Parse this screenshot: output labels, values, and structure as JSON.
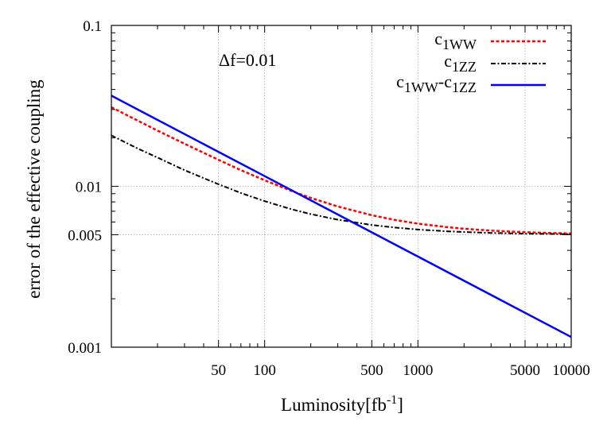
{
  "chart_data": {
    "type": "line",
    "xlabel": "Luminosity[fb",
    "xlabel_sup": "-1",
    "xlabel_end": "]",
    "ylabel": "error of the effective coupling",
    "annotation": "Δf=0.01",
    "x_scale": "log",
    "y_scale": "log",
    "xlim": [
      10,
      10000
    ],
    "ylim": [
      0.001,
      0.1
    ],
    "x_ticks": [
      50,
      100,
      500,
      1000,
      5000,
      10000
    ],
    "x_tick_labels": [
      "50",
      "100",
      "500",
      "1000",
      "5000",
      "10000"
    ],
    "y_ticks": [
      0.001,
      0.005,
      0.01,
      0.1
    ],
    "y_tick_labels": [
      "0.001",
      "0.005",
      "0.01",
      "0.1"
    ],
    "grid": "dotted, at labeled ticks",
    "legend_placement": "top-right",
    "series": [
      {
        "name": "c1WW",
        "name_base": "c",
        "name_sub": "1WW",
        "color": "#ff0000",
        "style": "dashed",
        "x": [
          10,
          15,
          20,
          30,
          50,
          70,
          100,
          150,
          200,
          300,
          500,
          700,
          1000,
          1500,
          2000,
          3000,
          5000,
          7000,
          10000
        ],
        "y": [
          0.031,
          0.0255,
          0.0222,
          0.0184,
          0.0146,
          0.0126,
          0.0109,
          0.00935,
          0.00847,
          0.00749,
          0.00661,
          0.00619,
          0.00586,
          0.00559,
          0.00545,
          0.0053,
          0.00518,
          0.00513,
          0.00509
        ]
      },
      {
        "name": "c1ZZ",
        "name_base": "c",
        "name_sub": "1ZZ",
        "color": "#000000",
        "style": "dash-dot",
        "x": [
          10,
          15,
          20,
          30,
          50,
          70,
          100,
          150,
          200,
          300,
          500,
          700,
          1000,
          1500,
          2000,
          3000,
          5000,
          7000,
          10000
        ],
        "y": [
          0.0207,
          0.0171,
          0.0151,
          0.0126,
          0.0103,
          0.00909,
          0.00808,
          0.0072,
          0.00672,
          0.0062,
          0.00575,
          0.00555,
          0.00539,
          0.00526,
          0.0052,
          0.00513,
          0.00508,
          0.00506,
          0.00504
        ]
      },
      {
        "name": "c1WW-c1ZZ",
        "name_base": "c",
        "name_sub": "1WW",
        "name_mid": "-c",
        "name_sub2": "1ZZ",
        "color": "#0000ff",
        "style": "solid",
        "x": [
          10,
          100,
          1000,
          10000
        ],
        "y": [
          0.0366,
          0.01157,
          0.00366,
          0.001157
        ]
      }
    ]
  }
}
